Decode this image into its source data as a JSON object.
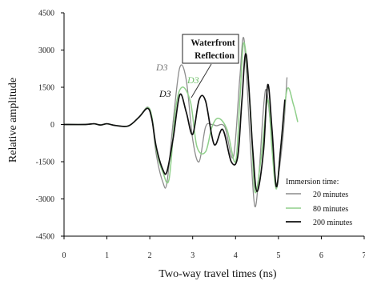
{
  "chart_data": {
    "type": "line",
    "xlabel": "Two-way travel times (ns)",
    "ylabel": "Relative amplitude",
    "xlim": [
      0,
      7
    ],
    "ylim": [
      -4500,
      4500
    ],
    "xticks": [
      0,
      1,
      2,
      3,
      4,
      5,
      6,
      7
    ],
    "yticks": [
      4500,
      3000,
      1500,
      0,
      -1500,
      -3000,
      -4500
    ],
    "grid": false,
    "legend": {
      "title": "Immersion time:",
      "placement": "bottom-right"
    },
    "series": [
      {
        "name": "20 minutes",
        "color": "#8c8c8c",
        "x": [
          0,
          0.5,
          0.7,
          0.85,
          1.0,
          1.2,
          1.5,
          1.75,
          1.95,
          2.05,
          2.15,
          2.3,
          2.4,
          2.55,
          2.7,
          2.85,
          3.0,
          3.15,
          3.3,
          3.45,
          3.55,
          3.75,
          3.95,
          4.1,
          4.2,
          4.35,
          4.45,
          4.55,
          4.7,
          4.85,
          4.95,
          5.1,
          5.2
        ],
        "y": [
          0,
          0,
          30,
          -20,
          30,
          -40,
          -60,
          300,
          700,
          200,
          -1200,
          -2300,
          -2350,
          200,
          2300,
          1800,
          -600,
          -1500,
          -100,
          0,
          -50,
          -100,
          -1300,
          1900,
          3400,
          -1000,
          -3300,
          -1900,
          1400,
          -700,
          -2400,
          -600,
          1900
        ]
      },
      {
        "name": "80 minutes",
        "color": "#8fcf8a",
        "x": [
          0,
          0.5,
          0.7,
          0.85,
          1.0,
          1.2,
          1.5,
          1.75,
          1.95,
          2.05,
          2.15,
          2.3,
          2.45,
          2.6,
          2.75,
          2.95,
          3.1,
          3.3,
          3.45,
          3.6,
          3.8,
          4.0,
          4.1,
          4.2,
          4.35,
          4.45,
          4.6,
          4.75,
          4.85,
          4.95,
          5.05,
          5.2,
          5.35,
          5.45
        ],
        "y": [
          0,
          0,
          30,
          -20,
          30,
          -40,
          -60,
          300,
          680,
          300,
          -1000,
          -1900,
          -2200,
          600,
          1500,
          900,
          -900,
          -1100,
          -100,
          250,
          -200,
          -1500,
          1000,
          3300,
          500,
          -2700,
          -1300,
          1000,
          -1000,
          -2600,
          -1000,
          1400,
          800,
          100
        ]
      },
      {
        "name": "200 minutes",
        "color": "#111111",
        "x": [
          0,
          0.5,
          0.7,
          0.85,
          1.0,
          1.2,
          1.5,
          1.75,
          1.95,
          2.05,
          2.15,
          2.3,
          2.4,
          2.55,
          2.7,
          2.85,
          3.0,
          3.15,
          3.3,
          3.5,
          3.7,
          3.9,
          4.05,
          4.15,
          4.25,
          4.4,
          4.5,
          4.65,
          4.75,
          4.85,
          4.95,
          5.05,
          5.15
        ],
        "y": [
          0,
          0,
          30,
          -20,
          30,
          -40,
          -60,
          300,
          650,
          200,
          -900,
          -1800,
          -1900,
          -500,
          1200,
          500,
          -400,
          1000,
          950,
          -800,
          -200,
          -1500,
          -1300,
          1000,
          2800,
          -1000,
          -2700,
          -1100,
          1600,
          -200,
          -2500,
          -1000,
          1000
        ]
      }
    ],
    "annotations": {
      "box_line1": "Waterfront",
      "box_line2": "Reflection",
      "d3_labels": [
        {
          "text": "D3",
          "series": "20 minutes",
          "color": "#777777"
        },
        {
          "text": "D3",
          "series": "80 minutes",
          "color": "#6fbf6a"
        },
        {
          "text": "D3",
          "series": "200 minutes",
          "color": "#111111"
        }
      ]
    }
  }
}
